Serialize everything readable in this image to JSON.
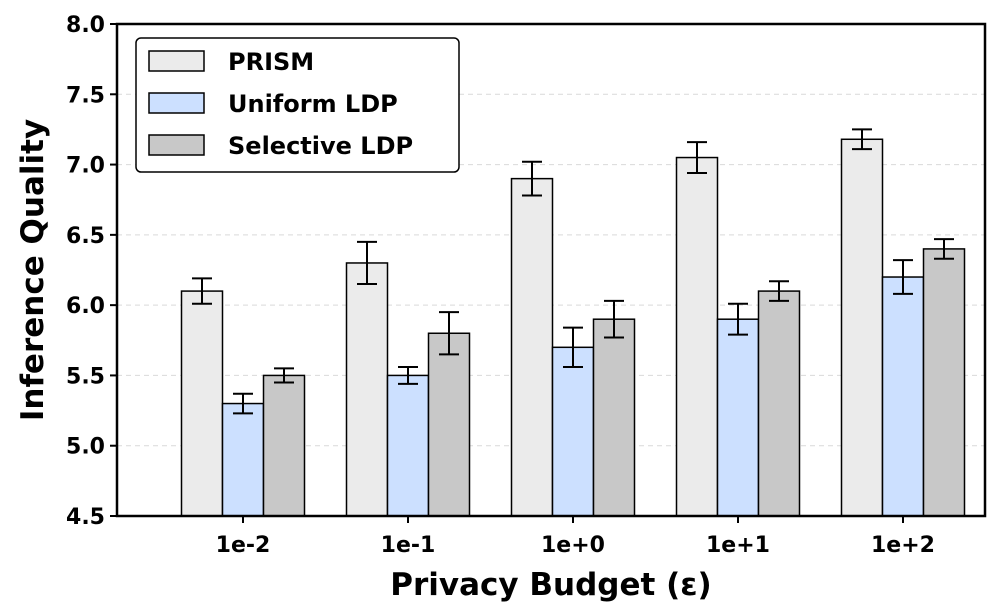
{
  "chart_data": {
    "type": "bar",
    "categories": [
      "1e-2",
      "1e-1",
      "1e+0",
      "1e+1",
      "1e+2"
    ],
    "series": [
      {
        "name": "PRISM",
        "values": [
          6.1,
          6.3,
          6.9,
          7.05,
          7.18
        ],
        "errors": [
          0.09,
          0.15,
          0.12,
          0.11,
          0.07
        ],
        "color": "#ebebeb"
      },
      {
        "name": "Uniform LDP",
        "values": [
          5.3,
          5.5,
          5.7,
          5.9,
          6.2
        ],
        "errors": [
          0.07,
          0.06,
          0.14,
          0.11,
          0.12
        ],
        "color": "#cce0ff"
      },
      {
        "name": "Selective LDP",
        "values": [
          5.5,
          5.8,
          5.9,
          6.1,
          6.4
        ],
        "errors": [
          0.05,
          0.15,
          0.13,
          0.07,
          0.07
        ],
        "color": "#c8c8c8"
      }
    ],
    "xlabel": "Privacy Budget (ε)",
    "ylabel": "Inference Quality",
    "ylim": [
      4.5,
      8.0
    ],
    "yticks": [
      "4.5",
      "5.0",
      "5.5",
      "6.0",
      "6.5",
      "7.0",
      "7.5",
      "8.0"
    ],
    "grid": "horizontal dashed",
    "legend_position": "top-left"
  }
}
